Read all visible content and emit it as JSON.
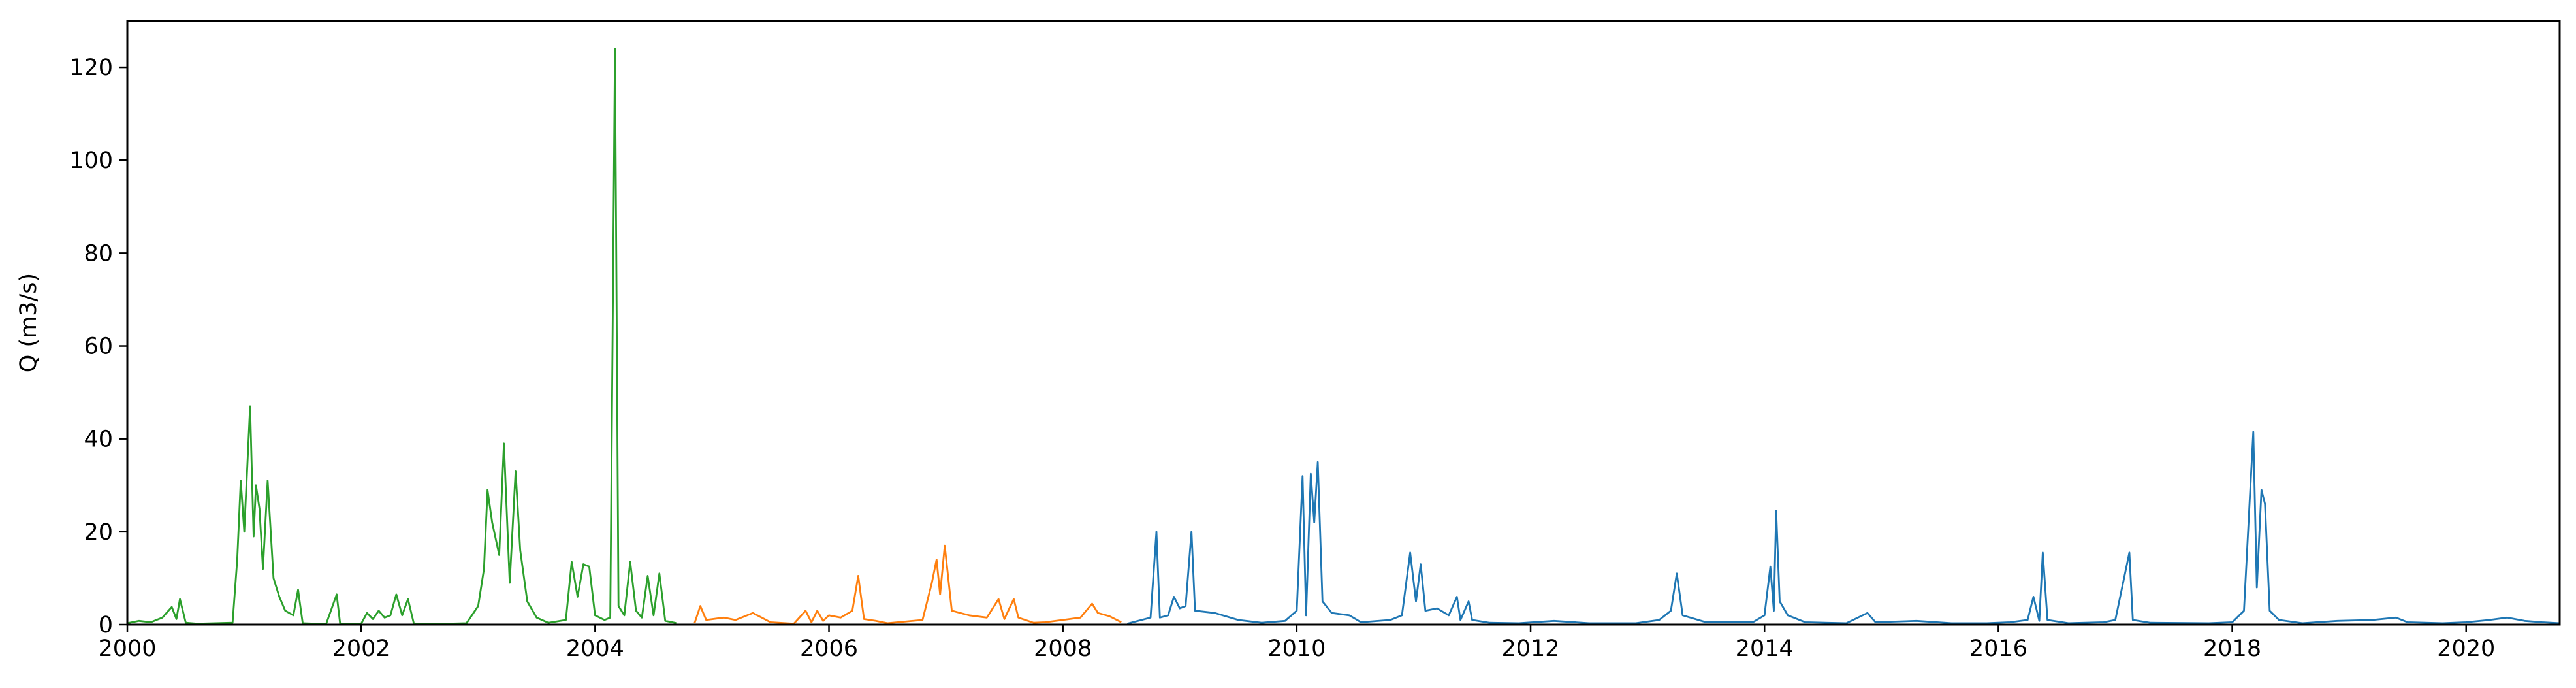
{
  "chart_data": {
    "type": "line",
    "title": "",
    "xlabel": "",
    "ylabel": "Q (m3/s)",
    "xlim": [
      2000.0,
      2020.8
    ],
    "ylim": [
      0,
      130
    ],
    "x_ticks": [
      2000,
      2002,
      2004,
      2006,
      2008,
      2010,
      2012,
      2014,
      2016,
      2018,
      2020
    ],
    "y_ticks": [
      0,
      20,
      40,
      60,
      80,
      100,
      120
    ],
    "grid": false,
    "legend": "none",
    "series": [
      {
        "color": "#2ca02c",
        "points": [
          [
            2000.0,
            0.3
          ],
          [
            2000.1,
            0.8
          ],
          [
            2000.2,
            0.5
          ],
          [
            2000.3,
            1.5
          ],
          [
            2000.38,
            3.8
          ],
          [
            2000.42,
            1.2
          ],
          [
            2000.45,
            5.5
          ],
          [
            2000.5,
            0.4
          ],
          [
            2000.6,
            0.2
          ],
          [
            2000.9,
            0.4
          ],
          [
            2000.94,
            14
          ],
          [
            2000.97,
            31
          ],
          [
            2001.0,
            20
          ],
          [
            2001.02,
            31
          ],
          [
            2001.05,
            47
          ],
          [
            2001.08,
            19
          ],
          [
            2001.1,
            30
          ],
          [
            2001.13,
            25
          ],
          [
            2001.16,
            12
          ],
          [
            2001.2,
            31
          ],
          [
            2001.25,
            10
          ],
          [
            2001.3,
            6
          ],
          [
            2001.35,
            3
          ],
          [
            2001.42,
            2
          ],
          [
            2001.46,
            7.5
          ],
          [
            2001.5,
            0.3
          ],
          [
            2001.7,
            0.1
          ],
          [
            2001.79,
            6.5
          ],
          [
            2001.82,
            0.2
          ],
          [
            2002.0,
            0.2
          ],
          [
            2002.05,
            2.5
          ],
          [
            2002.1,
            1.2
          ],
          [
            2002.15,
            3
          ],
          [
            2002.2,
            1.5
          ],
          [
            2002.25,
            2
          ],
          [
            2002.3,
            6.5
          ],
          [
            2002.35,
            2
          ],
          [
            2002.4,
            5.5
          ],
          [
            2002.45,
            0.2
          ],
          [
            2002.6,
            0.1
          ],
          [
            2002.9,
            0.3
          ],
          [
            2003.0,
            4
          ],
          [
            2003.05,
            12
          ],
          [
            2003.08,
            29
          ],
          [
            2003.12,
            22
          ],
          [
            2003.18,
            15
          ],
          [
            2003.22,
            39
          ],
          [
            2003.27,
            9
          ],
          [
            2003.32,
            33
          ],
          [
            2003.36,
            16
          ],
          [
            2003.42,
            5
          ],
          [
            2003.5,
            1.5
          ],
          [
            2003.6,
            0.4
          ],
          [
            2003.75,
            1
          ],
          [
            2003.8,
            13.5
          ],
          [
            2003.85,
            6
          ],
          [
            2003.9,
            13
          ],
          [
            2003.95,
            12.5
          ],
          [
            2004.0,
            2
          ],
          [
            2004.08,
            1
          ],
          [
            2004.13,
            1.5
          ],
          [
            2004.17,
            124
          ],
          [
            2004.2,
            4
          ],
          [
            2004.25,
            2
          ],
          [
            2004.3,
            13.5
          ],
          [
            2004.35,
            3
          ],
          [
            2004.4,
            1.5
          ],
          [
            2004.45,
            10.5
          ],
          [
            2004.5,
            2
          ],
          [
            2004.55,
            11
          ],
          [
            2004.6,
            0.8
          ],
          [
            2004.7,
            0.3
          ]
        ]
      },
      {
        "color": "#ff7f0e",
        "points": [
          [
            2004.85,
            0.3
          ],
          [
            2004.9,
            4
          ],
          [
            2004.95,
            1
          ],
          [
            2005.1,
            1.5
          ],
          [
            2005.2,
            1
          ],
          [
            2005.35,
            2.5
          ],
          [
            2005.5,
            0.5
          ],
          [
            2005.7,
            0.2
          ],
          [
            2005.8,
            3
          ],
          [
            2005.85,
            0.5
          ],
          [
            2005.9,
            3
          ],
          [
            2005.95,
            0.8
          ],
          [
            2006.0,
            2
          ],
          [
            2006.1,
            1.5
          ],
          [
            2006.2,
            3
          ],
          [
            2006.25,
            10.5
          ],
          [
            2006.3,
            1.2
          ],
          [
            2006.4,
            0.8
          ],
          [
            2006.5,
            0.3
          ],
          [
            2006.8,
            1
          ],
          [
            2006.88,
            9
          ],
          [
            2006.92,
            14
          ],
          [
            2006.95,
            6.5
          ],
          [
            2006.99,
            17
          ],
          [
            2007.05,
            3
          ],
          [
            2007.2,
            2
          ],
          [
            2007.35,
            1.5
          ],
          [
            2007.45,
            5.5
          ],
          [
            2007.5,
            1.2
          ],
          [
            2007.58,
            5.5
          ],
          [
            2007.62,
            1.5
          ],
          [
            2007.75,
            0.4
          ],
          [
            2007.85,
            0.5
          ],
          [
            2008.0,
            1
          ],
          [
            2008.15,
            1.5
          ],
          [
            2008.25,
            4.5
          ],
          [
            2008.3,
            2.5
          ],
          [
            2008.4,
            1.8
          ],
          [
            2008.5,
            0.5
          ]
        ]
      },
      {
        "color": "#1f77b4",
        "points": [
          [
            2008.55,
            0.2
          ],
          [
            2008.75,
            1.5
          ],
          [
            2008.8,
            20
          ],
          [
            2008.83,
            1.5
          ],
          [
            2008.9,
            2
          ],
          [
            2008.95,
            6
          ],
          [
            2009.0,
            3.5
          ],
          [
            2009.05,
            4
          ],
          [
            2009.1,
            20
          ],
          [
            2009.13,
            3
          ],
          [
            2009.3,
            2.5
          ],
          [
            2009.5,
            1
          ],
          [
            2009.7,
            0.4
          ],
          [
            2009.9,
            0.8
          ],
          [
            2010.0,
            3
          ],
          [
            2010.05,
            32
          ],
          [
            2010.08,
            2
          ],
          [
            2010.12,
            32.5
          ],
          [
            2010.15,
            22
          ],
          [
            2010.18,
            35
          ],
          [
            2010.22,
            5
          ],
          [
            2010.3,
            2.5
          ],
          [
            2010.45,
            2
          ],
          [
            2010.55,
            0.5
          ],
          [
            2010.8,
            1
          ],
          [
            2010.9,
            2
          ],
          [
            2010.97,
            15.5
          ],
          [
            2011.02,
            5
          ],
          [
            2011.06,
            13
          ],
          [
            2011.1,
            3
          ],
          [
            2011.2,
            3.5
          ],
          [
            2011.3,
            2
          ],
          [
            2011.37,
            6
          ],
          [
            2011.4,
            1
          ],
          [
            2011.47,
            5
          ],
          [
            2011.5,
            1
          ],
          [
            2011.65,
            0.4
          ],
          [
            2011.9,
            0.3
          ],
          [
            2012.2,
            0.8
          ],
          [
            2012.5,
            0.3
          ],
          [
            2012.9,
            0.3
          ],
          [
            2013.1,
            1
          ],
          [
            2013.2,
            3
          ],
          [
            2013.25,
            11
          ],
          [
            2013.3,
            2
          ],
          [
            2013.5,
            0.5
          ],
          [
            2013.9,
            0.5
          ],
          [
            2014.0,
            2
          ],
          [
            2014.05,
            12.5
          ],
          [
            2014.08,
            3
          ],
          [
            2014.1,
            24.5
          ],
          [
            2014.13,
            5
          ],
          [
            2014.2,
            2
          ],
          [
            2014.35,
            0.5
          ],
          [
            2014.7,
            0.3
          ],
          [
            2014.88,
            2.5
          ],
          [
            2014.95,
            0.5
          ],
          [
            2015.3,
            0.8
          ],
          [
            2015.6,
            0.3
          ],
          [
            2015.9,
            0.3
          ],
          [
            2016.1,
            0.5
          ],
          [
            2016.25,
            1
          ],
          [
            2016.3,
            6
          ],
          [
            2016.35,
            0.8
          ],
          [
            2016.38,
            15.5
          ],
          [
            2016.42,
            1
          ],
          [
            2016.6,
            0.3
          ],
          [
            2016.9,
            0.5
          ],
          [
            2017.0,
            1
          ],
          [
            2017.12,
            15.5
          ],
          [
            2017.15,
            1
          ],
          [
            2017.3,
            0.4
          ],
          [
            2017.8,
            0.3
          ],
          [
            2018.0,
            0.5
          ],
          [
            2018.1,
            3
          ],
          [
            2018.15,
            27
          ],
          [
            2018.18,
            41.5
          ],
          [
            2018.21,
            8
          ],
          [
            2018.25,
            29
          ],
          [
            2018.28,
            26
          ],
          [
            2018.32,
            3
          ],
          [
            2018.4,
            1
          ],
          [
            2018.6,
            0.3
          ],
          [
            2018.9,
            0.8
          ],
          [
            2019.2,
            1
          ],
          [
            2019.4,
            1.5
          ],
          [
            2019.5,
            0.5
          ],
          [
            2019.8,
            0.3
          ],
          [
            2020.0,
            0.5
          ],
          [
            2020.2,
            1
          ],
          [
            2020.35,
            1.5
          ],
          [
            2020.5,
            0.8
          ],
          [
            2020.65,
            0.5
          ],
          [
            2020.8,
            0.3
          ]
        ]
      }
    ]
  }
}
